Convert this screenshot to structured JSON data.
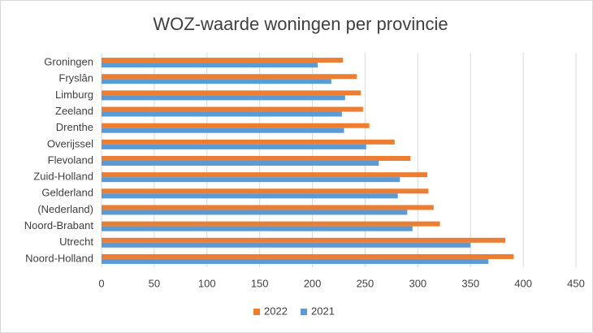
{
  "chart_data": {
    "type": "bar",
    "orientation": "horizontal",
    "title": "WOZ-waarde woningen per provincie",
    "categories": [
      "Groningen",
      "Fryslân",
      "Limburg",
      "Zeeland",
      "Drenthe",
      "Overijssel",
      "Flevoland",
      "Zuid-Holland",
      "Gelderland",
      "(Nederland)",
      "Noord-Brabant",
      "Utrecht",
      "Noord-Holland"
    ],
    "series": [
      {
        "name": "2022",
        "color": "#ed7d31",
        "values": [
          229,
          242,
          246,
          248,
          254,
          278,
          293,
          309,
          310,
          315,
          321,
          383,
          391
        ]
      },
      {
        "name": "2021",
        "color": "#5b9bd5",
        "values": [
          205,
          218,
          231,
          228,
          230,
          251,
          263,
          283,
          281,
          290,
          295,
          350,
          367
        ]
      }
    ],
    "xlim": [
      0,
      450
    ],
    "xticks": [
      0,
      50,
      100,
      150,
      200,
      250,
      300,
      350,
      400,
      450
    ],
    "grid": true,
    "legend": "bottom"
  }
}
